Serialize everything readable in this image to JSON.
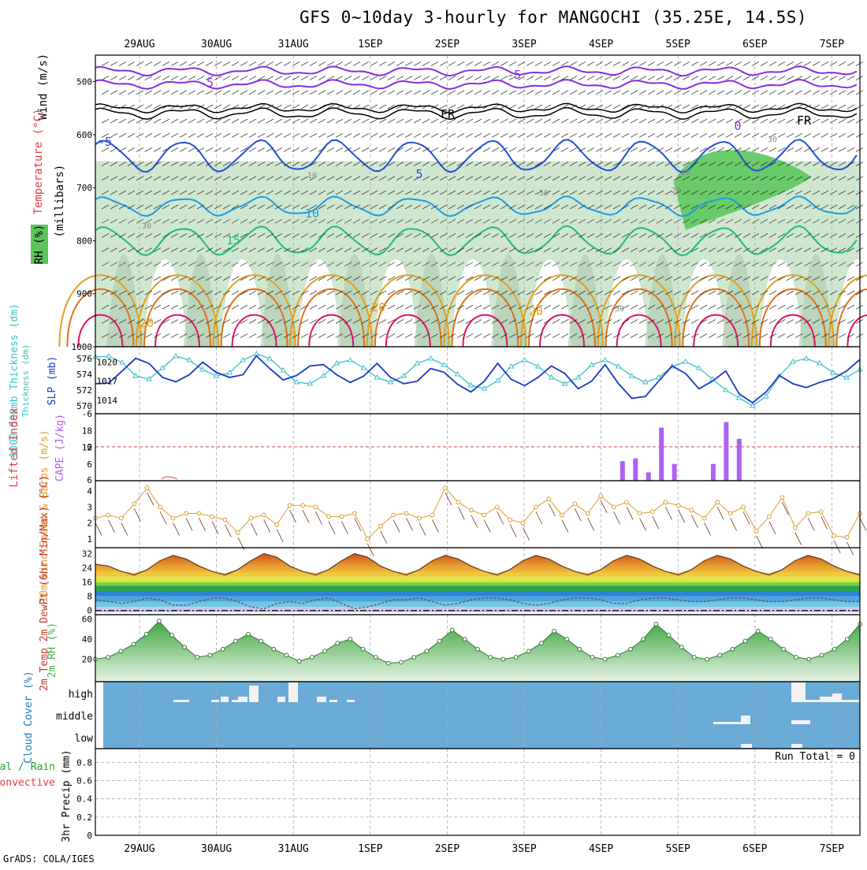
{
  "title": "GFS 0~10day 3-hourly for MANGOCHI (35.25E, 14.5S)",
  "credit": "GrADS: COLA/IGES",
  "run_total": "Run Total = 0",
  "date_labels": [
    "29AUG",
    "30AUG",
    "31AUG",
    "1SEP",
    "2SEP",
    "3SEP",
    "4SEP",
    "5SEP",
    "6SEP",
    "7SEP"
  ],
  "colors": {
    "rh_fill": "#cfe6cf",
    "rh_mid": "#a9c7a9",
    "rh_wet": "#5cc65c",
    "temp_m5": "#8a2be2",
    "temp_fr": "#000000",
    "temp_5": "#2050d8",
    "temp_10": "#1c9be0",
    "temp_15": "#20b880",
    "temp_20": "#e0a020",
    "temp_25": "#e07018",
    "temp_30": "#e0106a",
    "thickness": "#3cc0c8",
    "slp": "#1838c8",
    "cape": "#b060f0",
    "lifted": "#e04040",
    "wind": "#e09a30",
    "barb": "#6b3a1e",
    "cloud": "#6aaad6",
    "rh2m": "#4caf50"
  },
  "chart_data": [
    {
      "panel": "upper-air",
      "type": "heatmap",
      "ylabel": "Wind (m/s) Temperature (°C) RH (%) (millibars)",
      "legend": [
        "Wind (m/s)",
        "Temperature (°C)",
        "RH (%)"
      ],
      "y_ticks": [
        500,
        600,
        700,
        800,
        900,
        1000
      ],
      "contour_labels": [
        "-5",
        "-5",
        "FR",
        "FR",
        "0",
        "-5",
        "5",
        "10",
        "15",
        "20",
        "20",
        "20",
        "20",
        "50",
        "50",
        "30",
        "30",
        "10",
        "30"
      ]
    },
    {
      "panel": "thickness-slp",
      "type": "line",
      "ylabel_left": "1000-500mb Thickness (dm)",
      "ylabel_right": "SLP (mb)",
      "left_ticks": [
        570,
        572,
        574,
        576
      ],
      "right_ticks": [
        1014,
        1017,
        1020
      ],
      "series": [
        {
          "name": "1000-500mb Thickness (dm)",
          "axis": "left",
          "values": [
            576.2,
            576.3,
            575.5,
            573.8,
            573.4,
            574.8,
            576.3,
            575.8,
            574.6,
            573.8,
            574.2,
            575.8,
            576.6,
            576.0,
            574.5,
            573.0,
            572.8,
            573.8,
            575.4,
            575.8,
            574.8,
            573.6,
            573.0,
            573.8,
            575.4,
            576.0,
            575.2,
            574.0,
            572.6,
            572.2,
            573.2,
            575.0,
            575.8,
            575.0,
            573.6,
            572.8,
            573.6,
            575.2,
            575.8,
            575.0,
            573.8,
            573.0,
            573.6,
            575.0,
            575.6,
            574.8,
            573.4,
            572.0,
            571.0,
            570.0,
            571.2,
            573.8,
            575.6,
            576.0,
            575.4,
            574.2,
            573.6,
            574.6
          ]
        },
        {
          "name": "SLP (mb)",
          "axis": "right",
          "values": [
            1016.6,
            1016.7,
            1018.6,
            1020.6,
            1019.8,
            1017.6,
            1016.9,
            1018.0,
            1020.0,
            1018.4,
            1017.6,
            1018.0,
            1021.0,
            1019.0,
            1017.2,
            1017.9,
            1019.4,
            1019.6,
            1018.0,
            1016.8,
            1017.8,
            1019.8,
            1017.6,
            1016.6,
            1017.0,
            1019.0,
            1018.4,
            1016.5,
            1015.3,
            1017.0,
            1019.8,
            1017.3,
            1016.3,
            1017.6,
            1019.4,
            1018.2,
            1015.8,
            1017.0,
            1019.6,
            1016.6,
            1014.3,
            1014.6,
            1017.0,
            1019.4,
            1018.2,
            1015.8,
            1017.0,
            1018.6,
            1015.0,
            1013.6,
            1015.3,
            1017.9,
            1016.6,
            1016.0,
            1016.8,
            1017.4,
            1018.6,
            1020.4
          ]
        }
      ]
    },
    {
      "panel": "cape-lifted",
      "type": "bar",
      "ylabel_left": "Lifted Index",
      "ylabel_right": "CAPE (J/kg)",
      "left_ticks": [
        -6,
        0,
        6
      ],
      "right_ticks": [
        6,
        12,
        18
      ],
      "cape_bars": [
        {
          "index": 40,
          "value": 7
        },
        {
          "index": 41,
          "value": 8
        },
        {
          "index": 42,
          "value": 3
        },
        {
          "index": 43,
          "value": 19
        },
        {
          "index": 44,
          "value": 6
        },
        {
          "index": 47,
          "value": 6
        },
        {
          "index": 48,
          "value": 21
        },
        {
          "index": 49,
          "value": 15
        }
      ]
    },
    {
      "panel": "wind10m",
      "type": "line",
      "ylabel": "10m Wind Speed & Barbs (m/s)",
      "ticks": [
        1,
        2,
        3,
        4
      ],
      "series": [
        {
          "name": "10m Wind Speed",
          "values": [
            2.3,
            2.5,
            2.3,
            3.2,
            4.2,
            3.0,
            2.3,
            2.6,
            2.6,
            2.4,
            2.2,
            1.4,
            2.3,
            2.5,
            1.9,
            3.1,
            3.1,
            3.0,
            2.4,
            2.4,
            2.6,
            1.0,
            1.8,
            2.5,
            2.6,
            2.3,
            2.5,
            4.2,
            3.3,
            2.8,
            2.5,
            3.0,
            2.2,
            2.0,
            3.0,
            3.5,
            2.5,
            3.2,
            2.6,
            3.7,
            3.0,
            3.3,
            2.6,
            2.7,
            3.3,
            3.1,
            2.8,
            2.3,
            3.3,
            2.6,
            3.0,
            1.5,
            2.4,
            3.6,
            1.7,
            2.6,
            2.7,
            1.2,
            1.1,
            2.6
          ]
        }
      ]
    },
    {
      "panel": "temp2m",
      "type": "area",
      "ylabel": "2m Temp 2m DewPt (6hr Min/Max) (°C)",
      "ticks": [
        0,
        8,
        16,
        24,
        32
      ],
      "series": [
        {
          "name": "2m Temp",
          "values": [
            26,
            25,
            22,
            20,
            23,
            28,
            31,
            29,
            25,
            22,
            20,
            23,
            28,
            32,
            30,
            25,
            22,
            20,
            23,
            28,
            32,
            30,
            25,
            22,
            20,
            23,
            28,
            31,
            29,
            25,
            22,
            20,
            23,
            28,
            31,
            29,
            25,
            22,
            20,
            23,
            28,
            31,
            29,
            25,
            22,
            20,
            23,
            28,
            31,
            29,
            25,
            22,
            20,
            23,
            28,
            31,
            29,
            25,
            22,
            20
          ]
        },
        {
          "name": "2m DewPt",
          "values": [
            6,
            5,
            4,
            5,
            7,
            6,
            3,
            3,
            5,
            7,
            7,
            5,
            2,
            1,
            4,
            5,
            4,
            6,
            7,
            4,
            1,
            2,
            4,
            6,
            6,
            7,
            5,
            3,
            4,
            6,
            7,
            7,
            6,
            4,
            3,
            4,
            6,
            7,
            7,
            6,
            4,
            4,
            6,
            7,
            7,
            6,
            5,
            5,
            6,
            7,
            7,
            6,
            5,
            5,
            6,
            7,
            7,
            6,
            5,
            5
          ]
        }
      ]
    },
    {
      "panel": "rh2m",
      "type": "area",
      "ylabel": "2m RH (%)",
      "ticks": [
        20,
        40,
        60
      ],
      "series": [
        {
          "name": "2m RH",
          "values": [
            20,
            22,
            28,
            35,
            45,
            58,
            44,
            32,
            22,
            24,
            30,
            38,
            45,
            38,
            30,
            24,
            18,
            22,
            28,
            36,
            40,
            30,
            22,
            16,
            17,
            22,
            28,
            38,
            49,
            40,
            30,
            22,
            20,
            22,
            28,
            36,
            48,
            40,
            30,
            22,
            20,
            24,
            30,
            40,
            55,
            44,
            32,
            22,
            20,
            24,
            30,
            38,
            48,
            40,
            30,
            22,
            20,
            24,
            30,
            40,
            55
          ]
        }
      ]
    },
    {
      "panel": "cloud",
      "type": "heatmap",
      "ylabel": "Cloud Cover (%)",
      "levels": [
        "high",
        "middle",
        "low"
      ]
    },
    {
      "panel": "precip",
      "type": "bar",
      "ylabel": "3hr Precip (mm)",
      "legend_left": "Total / Rain",
      "legend_conv": "Convective",
      "ticks": [
        "0",
        "0.2",
        "0.4",
        "0.6",
        "0.8"
      ],
      "values": []
    }
  ]
}
